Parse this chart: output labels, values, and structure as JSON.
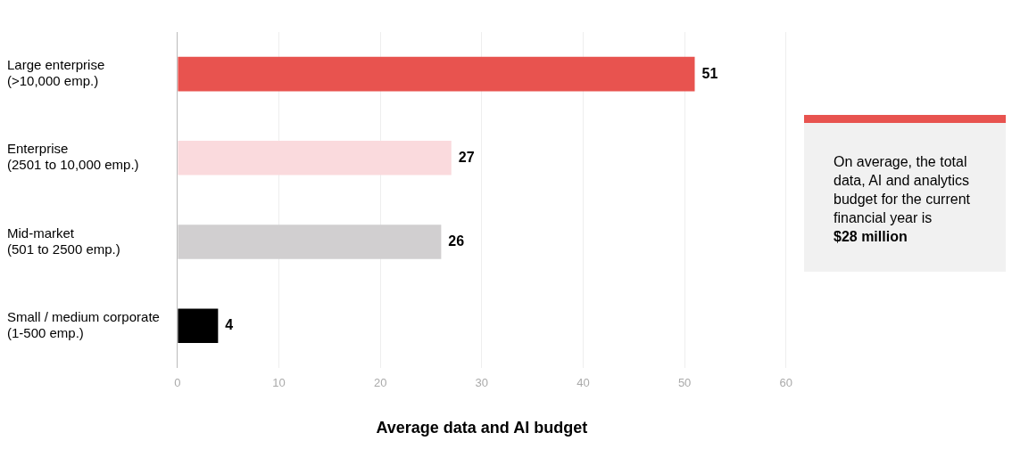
{
  "chart_data": {
    "type": "bar",
    "orientation": "horizontal",
    "xlabel": "Average data and AI budget",
    "categories": [
      "Large enterprise\n(>10,000 emp.)",
      "Enterprise\n(2501 to 10,000 emp.)",
      "Mid-market\n(501 to 2500 emp.)",
      "Small / medium corporate\n(1-500 emp.)"
    ],
    "values": [
      51,
      27,
      26,
      4
    ],
    "colors": [
      "#e8534f",
      "#fadadd",
      "#d1cfd0",
      "#000000"
    ],
    "xlim": [
      0,
      60
    ],
    "xticks": [
      0,
      10,
      20,
      30,
      40,
      50,
      60
    ],
    "grid": "x",
    "data_labels": true,
    "annotations": [
      "On average, the total data, AI and analytics budget for the current financial year is",
      "$28 million"
    ]
  }
}
